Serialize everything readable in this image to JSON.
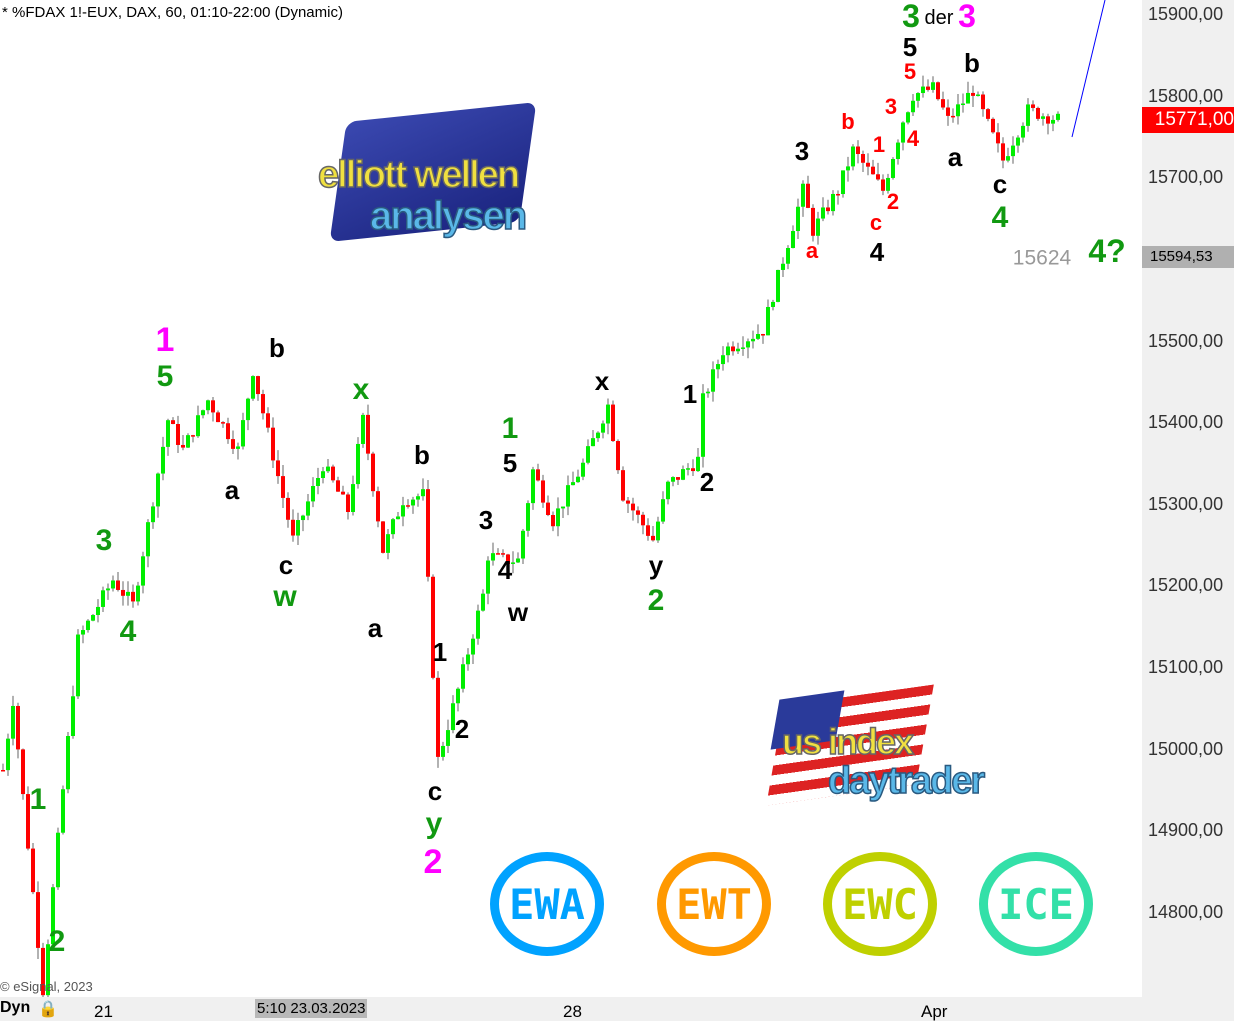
{
  "header": {
    "title": "* %FDAX 1!-EUX, DAX, 60, 01:10-22:00 (Dynamic)"
  },
  "footer": {
    "copyright": "© eSignal, 2023",
    "mode": "Dyn",
    "cursor_time": "5:10 23.03.2023",
    "lock_icon": "lock-icon"
  },
  "colors": {
    "up": "#00ee00",
    "down": "#ff0000",
    "magenta": "#ff00ff",
    "green": "#119911",
    "black": "#000000",
    "red": "#ff0000",
    "trendline": "#0000ff"
  },
  "chart_data": {
    "type": "candlestick",
    "title": "* %FDAX 1!-EUX, DAX, 60, 01:10-22:00 (Dynamic)",
    "ylim": [
      14700,
      15925
    ],
    "y_ticks": [
      "15900,00",
      "15800,00",
      "15700,00",
      "15500,00",
      "15400,00",
      "15300,00",
      "15200,00",
      "15100,00",
      "15000,00",
      "14900,00",
      "14800,00"
    ],
    "y_tick_values": [
      15900,
      15800,
      15700,
      15500,
      15400,
      15300,
      15200,
      15100,
      15000,
      14900,
      14800
    ],
    "x_ticks": [
      "21",
      "28",
      "Apr"
    ],
    "last_price": "15771,00",
    "ref_price": "15594,53",
    "annotation_level": "15624",
    "price_path": [
      [
        0,
        14974
      ],
      [
        2,
        15060
      ],
      [
        8,
        14705
      ],
      [
        15,
        15133
      ],
      [
        22,
        15207
      ],
      [
        26,
        15176
      ],
      [
        33,
        15403
      ],
      [
        36,
        15366
      ],
      [
        41,
        15427
      ],
      [
        47,
        15366
      ],
      [
        50,
        15464
      ],
      [
        58,
        15256
      ],
      [
        64,
        15348
      ],
      [
        69,
        15292
      ],
      [
        72,
        15403
      ],
      [
        76,
        15243
      ],
      [
        80,
        15305
      ],
      [
        84,
        15311
      ],
      [
        87,
        14986
      ],
      [
        91,
        15072
      ],
      [
        96,
        15188
      ],
      [
        97,
        15237
      ],
      [
        100,
        15231
      ],
      [
        103,
        15231
      ],
      [
        106,
        15341
      ],
      [
        110,
        15280
      ],
      [
        116,
        15348
      ],
      [
        121,
        15421
      ],
      [
        124,
        15311
      ],
      [
        130,
        15256
      ],
      [
        133,
        15323
      ],
      [
        139,
        15354
      ],
      [
        140,
        15427
      ],
      [
        144,
        15488
      ],
      [
        152,
        15513
      ],
      [
        156,
        15599
      ],
      [
        160,
        15684
      ],
      [
        162,
        15635
      ],
      [
        167,
        15684
      ],
      [
        170,
        15733
      ],
      [
        176,
        15684
      ],
      [
        180,
        15770
      ],
      [
        182,
        15801
      ],
      [
        186,
        15809
      ],
      [
        189,
        15770
      ],
      [
        194,
        15807
      ],
      [
        200,
        15721
      ],
      [
        205,
        15782
      ],
      [
        211,
        15771
      ]
    ],
    "wave_labels": [
      "1",
      "5",
      "3",
      "4",
      "1",
      "2",
      "b",
      "a",
      "c",
      "w",
      "x",
      "a",
      "b",
      "1",
      "2",
      "c",
      "y",
      "2",
      "3",
      "4",
      "w",
      "1",
      "5",
      "x",
      "y",
      "2",
      "1",
      "2",
      "3",
      "a",
      "b",
      "c",
      "4",
      "1",
      "2",
      "3",
      "4",
      "5",
      "5",
      "3",
      "der",
      "3",
      "b",
      "a",
      "c",
      "4",
      "4?"
    ]
  },
  "logos": {
    "elliott": [
      "elliott wellen",
      "analysen"
    ],
    "us": [
      "us index",
      "daytrader"
    ],
    "badges": [
      {
        "text": "EWA",
        "color": "#00a2ff"
      },
      {
        "text": "EWT",
        "color": "#ff9900"
      },
      {
        "text": "EWC",
        "color": "#bfd000"
      },
      {
        "text": "ICE",
        "color": "#33e0a8"
      }
    ]
  }
}
